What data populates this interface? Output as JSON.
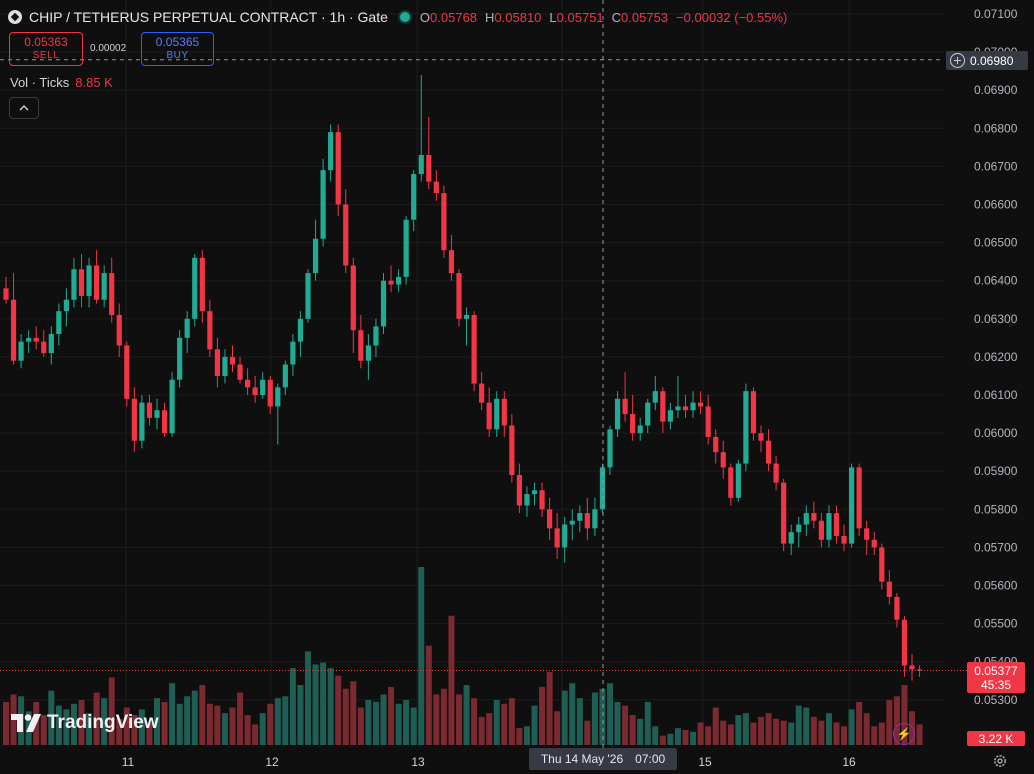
{
  "header": {
    "title": "CHIP / TETHERUS PERPETUAL CONTRACT · 1h · Gate",
    "ohlc": [
      {
        "k": "O",
        "v": "0.05768"
      },
      {
        "k": "H",
        "v": "0.05810"
      },
      {
        "k": "L",
        "v": "0.05751"
      },
      {
        "k": "C",
        "v": "0.05753"
      },
      {
        "k": "",
        "v": "−0.00032 (−0.55%)"
      }
    ]
  },
  "trade": {
    "sell_price": "0.05363",
    "sell_label": "SELL",
    "spread": "0.00002",
    "buy_price": "0.05365",
    "buy_label": "BUY"
  },
  "volume_legend": {
    "label": "Vol · Ticks",
    "value": "8.85 K"
  },
  "logo": "TradingView",
  "crosshair": {
    "price": "0.06980",
    "date": "Thu 14 May '26",
    "time": "07:00"
  },
  "last_price": {
    "price": "0.05377",
    "countdown": "45:35"
  },
  "last_volume": "3.22 K",
  "colors": {
    "up": "#22ab94",
    "down": "#f23645",
    "background": "#0f0f0f",
    "grid": "#1c1c1c"
  },
  "icons": [
    "symbol-icon",
    "status-dot-icon",
    "chevron-up-icon",
    "plus-circle-icon",
    "lightning-icon",
    "gear-icon"
  ],
  "chart_data": {
    "type": "candlestick",
    "price_axis": {
      "min": 0.053,
      "max": 0.071,
      "ticks": [
        "0.07100",
        "0.07000",
        "0.06900",
        "0.06800",
        "0.06700",
        "0.06600",
        "0.06500",
        "0.06400",
        "0.06300",
        "0.06200",
        "0.06100",
        "0.06000",
        "0.05900",
        "0.05800",
        "0.05700",
        "0.05600",
        "0.05500",
        "0.05400",
        "0.05300"
      ]
    },
    "time_axis": {
      "labels": [
        "11",
        "12",
        "13",
        "15",
        "16"
      ]
    },
    "candles": [
      [
        0.0638,
        0.0641,
        0.0634,
        0.0635
      ],
      [
        0.0635,
        0.0642,
        0.0618,
        0.0619
      ],
      [
        0.0619,
        0.0626,
        0.0617,
        0.0624
      ],
      [
        0.0624,
        0.0627,
        0.0621,
        0.0625
      ],
      [
        0.0625,
        0.0628,
        0.0622,
        0.0624
      ],
      [
        0.0624,
        0.0627,
        0.062,
        0.0621
      ],
      [
        0.0621,
        0.0628,
        0.0618,
        0.0626
      ],
      [
        0.0626,
        0.0634,
        0.0623,
        0.0632
      ],
      [
        0.0632,
        0.0638,
        0.0628,
        0.0635
      ],
      [
        0.0635,
        0.0646,
        0.0633,
        0.0643
      ],
      [
        0.0643,
        0.0647,
        0.0633,
        0.0636
      ],
      [
        0.0636,
        0.0646,
        0.0633,
        0.0644
      ],
      [
        0.0644,
        0.0648,
        0.0634,
        0.0635
      ],
      [
        0.0635,
        0.0644,
        0.0633,
        0.0642
      ],
      [
        0.0642,
        0.0646,
        0.0629,
        0.0631
      ],
      [
        0.0631,
        0.0634,
        0.062,
        0.0623
      ],
      [
        0.0623,
        0.0624,
        0.0607,
        0.0609
      ],
      [
        0.0609,
        0.0612,
        0.0595,
        0.0598
      ],
      [
        0.0598,
        0.061,
        0.0596,
        0.0608
      ],
      [
        0.0608,
        0.061,
        0.0602,
        0.0604
      ],
      [
        0.0604,
        0.0609,
        0.0601,
        0.0606
      ],
      [
        0.0606,
        0.0608,
        0.0599,
        0.06
      ],
      [
        0.06,
        0.0616,
        0.0599,
        0.0614
      ],
      [
        0.0614,
        0.0627,
        0.0612,
        0.0625
      ],
      [
        0.0625,
        0.0632,
        0.0621,
        0.063
      ],
      [
        0.063,
        0.0647,
        0.0628,
        0.0646
      ],
      [
        0.0646,
        0.0648,
        0.0629,
        0.0632
      ],
      [
        0.0632,
        0.0635,
        0.062,
        0.0622
      ],
      [
        0.0622,
        0.0625,
        0.0612,
        0.0615
      ],
      [
        0.0615,
        0.0622,
        0.0613,
        0.062
      ],
      [
        0.062,
        0.0623,
        0.0616,
        0.0618
      ],
      [
        0.0618,
        0.062,
        0.0613,
        0.0614
      ],
      [
        0.0614,
        0.0617,
        0.061,
        0.0612
      ],
      [
        0.0612,
        0.0615,
        0.0608,
        0.061
      ],
      [
        0.061,
        0.0616,
        0.0609,
        0.0614
      ],
      [
        0.0614,
        0.0615,
        0.0605,
        0.0607
      ],
      [
        0.0607,
        0.0613,
        0.0597,
        0.0612
      ],
      [
        0.0612,
        0.0619,
        0.061,
        0.0618
      ],
      [
        0.0618,
        0.0626,
        0.0615,
        0.0624
      ],
      [
        0.0624,
        0.0632,
        0.062,
        0.063
      ],
      [
        0.063,
        0.0643,
        0.0629,
        0.0642
      ],
      [
        0.0642,
        0.0656,
        0.064,
        0.0651
      ],
      [
        0.0651,
        0.0672,
        0.0649,
        0.0669
      ],
      [
        0.0669,
        0.0681,
        0.0666,
        0.0679
      ],
      [
        0.0679,
        0.0681,
        0.0657,
        0.066
      ],
      [
        0.066,
        0.0664,
        0.0642,
        0.0644
      ],
      [
        0.0644,
        0.0646,
        0.0621,
        0.0627
      ],
      [
        0.0627,
        0.0631,
        0.0617,
        0.0619
      ],
      [
        0.0619,
        0.0626,
        0.0614,
        0.0623
      ],
      [
        0.0623,
        0.063,
        0.062,
        0.0628
      ],
      [
        0.0628,
        0.0642,
        0.0626,
        0.064
      ],
      [
        0.064,
        0.0644,
        0.0637,
        0.0639
      ],
      [
        0.0639,
        0.0643,
        0.0637,
        0.0641
      ],
      [
        0.0641,
        0.0657,
        0.0639,
        0.0656
      ],
      [
        0.0656,
        0.0669,
        0.0653,
        0.0668
      ],
      [
        0.0668,
        0.0694,
        0.0666,
        0.0673
      ],
      [
        0.0673,
        0.0683,
        0.0664,
        0.0666
      ],
      [
        0.0666,
        0.0669,
        0.0661,
        0.0663
      ],
      [
        0.0663,
        0.0665,
        0.0646,
        0.0648
      ],
      [
        0.0648,
        0.0652,
        0.064,
        0.0642
      ],
      [
        0.0642,
        0.0643,
        0.0628,
        0.063
      ],
      [
        0.063,
        0.0633,
        0.0623,
        0.0631
      ],
      [
        0.0631,
        0.0632,
        0.0611,
        0.0613
      ],
      [
        0.0613,
        0.0616,
        0.0606,
        0.0608
      ],
      [
        0.0608,
        0.0612,
        0.0599,
        0.0601
      ],
      [
        0.0601,
        0.0611,
        0.0599,
        0.0609
      ],
      [
        0.0609,
        0.0611,
        0.0599,
        0.0602
      ],
      [
        0.0602,
        0.0605,
        0.0587,
        0.0589
      ],
      [
        0.0589,
        0.0592,
        0.0579,
        0.0581
      ],
      [
        0.0581,
        0.0586,
        0.0578,
        0.0584
      ],
      [
        0.0584,
        0.0587,
        0.0581,
        0.0585
      ],
      [
        0.0585,
        0.0587,
        0.0578,
        0.058
      ],
      [
        0.058,
        0.0583,
        0.0572,
        0.0575
      ],
      [
        0.0575,
        0.0579,
        0.0567,
        0.057
      ],
      [
        0.057,
        0.0578,
        0.0566,
        0.0576
      ],
      [
        0.0576,
        0.058,
        0.0572,
        0.0577
      ],
      [
        0.0577,
        0.0581,
        0.0574,
        0.0579
      ],
      [
        0.0579,
        0.0583,
        0.0572,
        0.0575
      ],
      [
        0.0575,
        0.0583,
        0.0573,
        0.058
      ],
      [
        0.058,
        0.0592,
        0.0579,
        0.0591
      ],
      [
        0.0591,
        0.0602,
        0.0589,
        0.0601
      ],
      [
        0.0601,
        0.0611,
        0.0599,
        0.0609
      ],
      [
        0.0609,
        0.0616,
        0.0603,
        0.0605
      ],
      [
        0.0605,
        0.061,
        0.0598,
        0.06
      ],
      [
        0.06,
        0.0604,
        0.0598,
        0.0602
      ],
      [
        0.0602,
        0.0609,
        0.06,
        0.0608
      ],
      [
        0.0608,
        0.0615,
        0.0606,
        0.0611
      ],
      [
        0.0611,
        0.0612,
        0.06,
        0.0603
      ],
      [
        0.0603,
        0.0608,
        0.0601,
        0.0606
      ],
      [
        0.0606,
        0.0615,
        0.0604,
        0.0607
      ],
      [
        0.0607,
        0.061,
        0.0604,
        0.0606
      ],
      [
        0.0606,
        0.0611,
        0.0604,
        0.0608
      ],
      [
        0.0608,
        0.0611,
        0.0605,
        0.0607
      ],
      [
        0.0607,
        0.061,
        0.0597,
        0.0599
      ],
      [
        0.0599,
        0.0601,
        0.0592,
        0.0595
      ],
      [
        0.0595,
        0.0598,
        0.0588,
        0.0591
      ],
      [
        0.0591,
        0.0592,
        0.0581,
        0.0583
      ],
      [
        0.0583,
        0.0593,
        0.0582,
        0.0592
      ],
      [
        0.0592,
        0.0613,
        0.059,
        0.0611
      ],
      [
        0.0611,
        0.0612,
        0.0598,
        0.06
      ],
      [
        0.06,
        0.0602,
        0.0595,
        0.0598
      ],
      [
        0.0598,
        0.0601,
        0.059,
        0.0592
      ],
      [
        0.0592,
        0.0594,
        0.0585,
        0.0587
      ],
      [
        0.0587,
        0.0588,
        0.0569,
        0.0571
      ],
      [
        0.0571,
        0.0576,
        0.0568,
        0.0574
      ],
      [
        0.0574,
        0.0578,
        0.057,
        0.0576
      ],
      [
        0.0576,
        0.0581,
        0.0573,
        0.0579
      ],
      [
        0.0579,
        0.0582,
        0.0575,
        0.0577
      ],
      [
        0.0577,
        0.0579,
        0.057,
        0.0572
      ],
      [
        0.0572,
        0.0581,
        0.057,
        0.0579
      ],
      [
        0.0579,
        0.0581,
        0.0571,
        0.0573
      ],
      [
        0.0573,
        0.0576,
        0.0569,
        0.0571
      ],
      [
        0.0571,
        0.0592,
        0.057,
        0.0591
      ],
      [
        0.0591,
        0.0592,
        0.0573,
        0.0575
      ],
      [
        0.0575,
        0.0577,
        0.0568,
        0.0572
      ],
      [
        0.0572,
        0.0574,
        0.0568,
        0.057
      ],
      [
        0.057,
        0.0571,
        0.0559,
        0.0561
      ],
      [
        0.0561,
        0.0564,
        0.0555,
        0.0557
      ],
      [
        0.0557,
        0.0558,
        0.0549,
        0.0551
      ],
      [
        0.0551,
        0.0552,
        0.0536,
        0.0539
      ],
      [
        0.0539,
        0.0542,
        0.0535,
        0.0538
      ],
      [
        0.0538,
        0.0539,
        0.0536,
        0.05377
      ]
    ],
    "volumes": [
      1150,
      1350,
      1300,
      900,
      1150,
      800,
      1450,
      1050,
      950,
      1100,
      1200,
      850,
      1400,
      1250,
      1800,
      700,
      1000,
      800,
      950,
      600,
      1250,
      1150,
      1650,
      1100,
      1300,
      1450,
      1600,
      1100,
      1050,
      850,
      1000,
      1400,
      800,
      550,
      850,
      1100,
      1250,
      1300,
      2050,
      1600,
      2500,
      2150,
      2200,
      2050,
      1850,
      1500,
      1700,
      1000,
      1200,
      1150,
      1350,
      1550,
      1100,
      1200,
      1000,
      4750,
      2650,
      1350,
      1500,
      3450,
      1350,
      1600,
      1250,
      750,
      850,
      1200,
      1100,
      1250,
      450,
      500,
      1050,
      1550,
      1950,
      900,
      1450,
      1650,
      1250,
      650,
      1400,
      1500,
      1650,
      1150,
      1050,
      800,
      700,
      1150,
      500,
      250,
      300,
      450,
      400,
      350,
      600,
      500,
      1000,
      650,
      550,
      800,
      850,
      600,
      750,
      850,
      700,
      650,
      600,
      1050,
      1000,
      750,
      650,
      850,
      600,
      500,
      950,
      1150,
      850,
      500,
      600,
      1200,
      1300,
      1600,
      900,
      550
    ]
  }
}
